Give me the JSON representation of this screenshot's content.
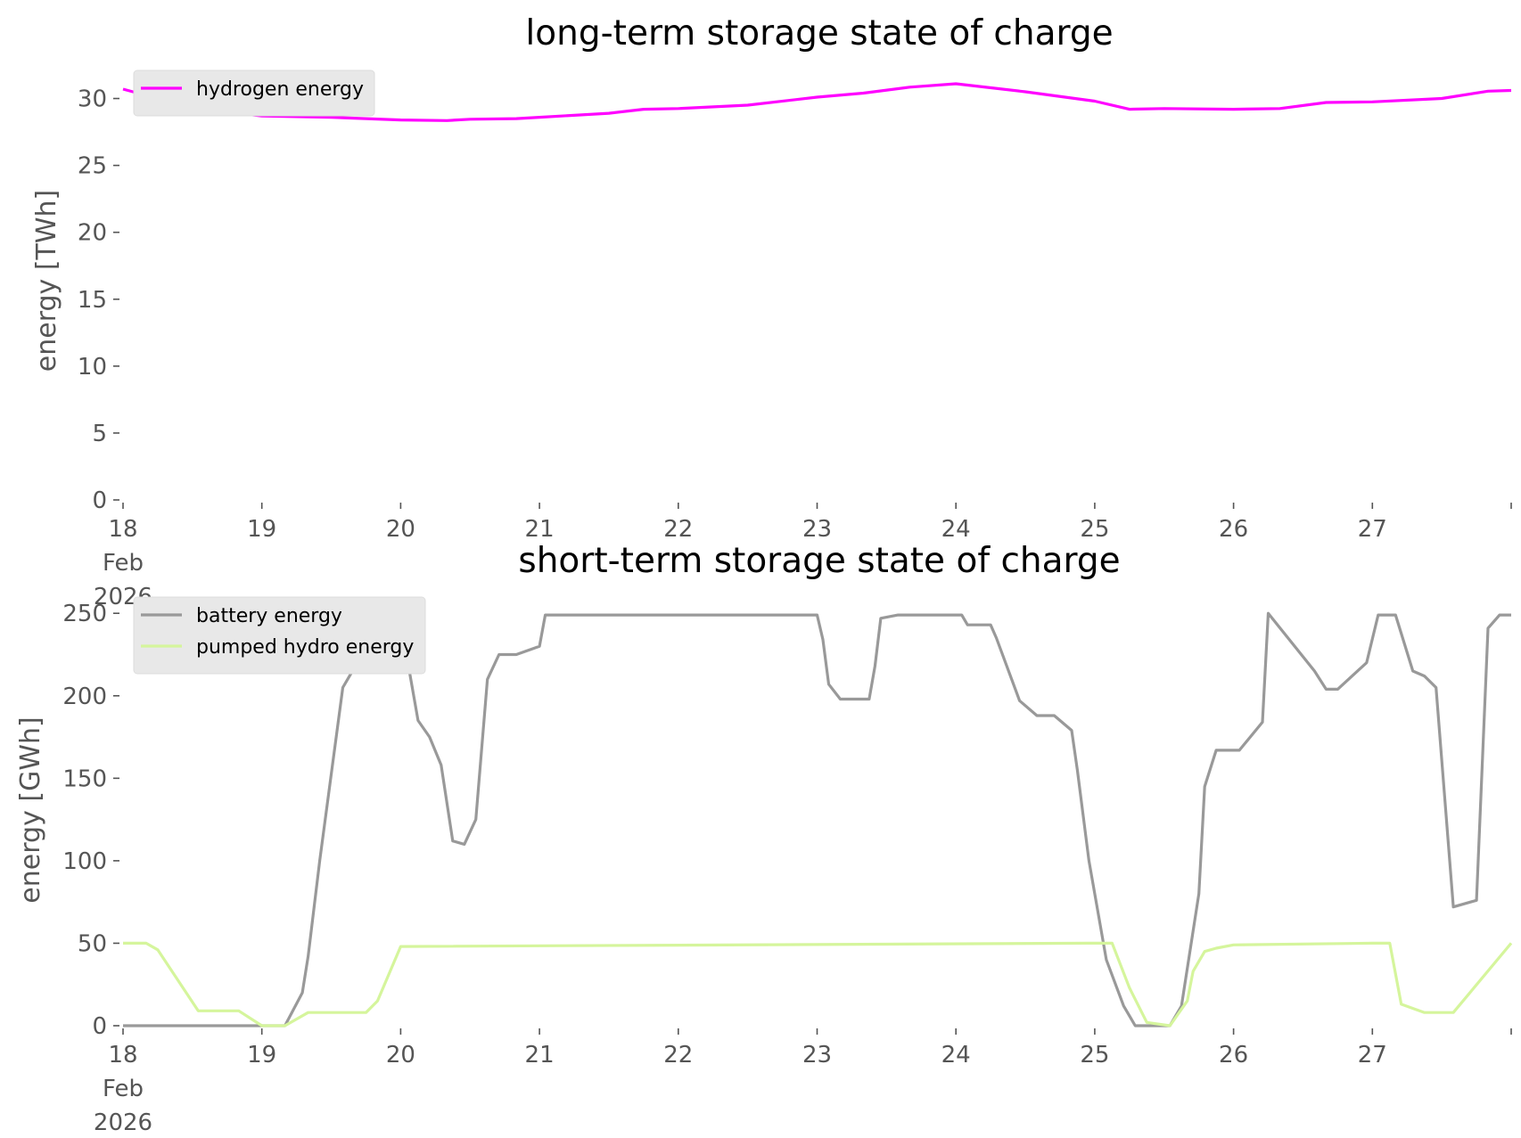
{
  "chart_data": [
    {
      "type": "line",
      "title": "long-term storage state of charge",
      "ylabel": "energy [TWh]",
      "xlabel": "",
      "x_range": [
        "2026-02-18",
        "2026-02-28"
      ],
      "ylim": [
        0,
        32.5
      ],
      "yticks": [
        0,
        5,
        10,
        15,
        20,
        25,
        30
      ],
      "xtick_labels": [
        "18\nFeb\n2026",
        "19",
        "20",
        "21",
        "22",
        "23",
        "24",
        "25",
        "26",
        "27"
      ],
      "grid": false,
      "legend_position": "top-left",
      "series": [
        {
          "name": "hydrogen energy",
          "color": "#ff00ff",
          "x": [
            "2026-02-18 00:00",
            "2026-02-18 06:00",
            "2026-02-18 12:00",
            "2026-02-18 18:00",
            "2026-02-19 00:00",
            "2026-02-19 12:00",
            "2026-02-20 00:00",
            "2026-02-20 08:00",
            "2026-02-20 12:00",
            "2026-02-20 20:00",
            "2026-02-21 00:00",
            "2026-02-21 12:00",
            "2026-02-21 18:00",
            "2026-02-22 00:00",
            "2026-02-22 12:00",
            "2026-02-23 00:00",
            "2026-02-23 08:00",
            "2026-02-23 16:00",
            "2026-02-24 00:00",
            "2026-02-24 12:00",
            "2026-02-25 00:00",
            "2026-02-25 06:00",
            "2026-02-25 12:00",
            "2026-02-26 00:00",
            "2026-02-26 08:00",
            "2026-02-26 16:00",
            "2026-02-27 00:00",
            "2026-02-27 12:00",
            "2026-02-27 20:00",
            "2026-02-28 00:00"
          ],
          "values": [
            30.7,
            30.0,
            29.5,
            29.0,
            28.7,
            28.6,
            28.4,
            28.35,
            28.45,
            28.5,
            28.6,
            28.9,
            29.2,
            29.25,
            29.5,
            30.1,
            30.4,
            30.85,
            31.1,
            30.5,
            29.8,
            29.2,
            29.25,
            29.2,
            29.25,
            29.7,
            29.75,
            30.0,
            30.55,
            30.6
          ]
        }
      ]
    },
    {
      "type": "line",
      "title": "short-term storage state of charge",
      "ylabel": "energy [GWh]",
      "xlabel": "",
      "x_range": [
        "2026-02-18",
        "2026-02-28"
      ],
      "ylim": [
        0,
        262
      ],
      "yticks": [
        0,
        50,
        100,
        150,
        200,
        250
      ],
      "xtick_labels": [
        "18\nFeb\n2026",
        "19",
        "20",
        "21",
        "22",
        "23",
        "24",
        "25",
        "26",
        "27"
      ],
      "grid": false,
      "legend_position": "top-left",
      "series": [
        {
          "name": "battery energy",
          "color": "#999999",
          "x": [
            "2026-02-18 00:00",
            "2026-02-19 04:00",
            "2026-02-19 07:00",
            "2026-02-19 08:00",
            "2026-02-19 10:00",
            "2026-02-19 14:00",
            "2026-02-19 16:00",
            "2026-02-19 18:00",
            "2026-02-19 20:00",
            "2026-02-19 23:00",
            "2026-02-20 01:00",
            "2026-02-20 03:00",
            "2026-02-20 05:00",
            "2026-02-20 07:00",
            "2026-02-20 09:00",
            "2026-02-20 11:00",
            "2026-02-20 13:00",
            "2026-02-20 15:00",
            "2026-02-20 17:00",
            "2026-02-20 20:00",
            "2026-02-21 00:00",
            "2026-02-21 01:00",
            "2026-02-21 07:00",
            "2026-02-21 08:00",
            "2026-02-21 11:00",
            "2026-02-22 11:00",
            "2026-02-22 19:00",
            "2026-02-22 23:00",
            "2026-02-23 00:00",
            "2026-02-23 01:00",
            "2026-02-23 02:00",
            "2026-02-23 04:00",
            "2026-02-23 09:00",
            "2026-02-23 10:00",
            "2026-02-23 11:00",
            "2026-02-23 14:00",
            "2026-02-23 16:00",
            "2026-02-23 19:00",
            "2026-02-24 01:00",
            "2026-02-24 02:00",
            "2026-02-24 06:00",
            "2026-02-24 07:00",
            "2026-02-24 11:00",
            "2026-02-24 14:00",
            "2026-02-24 15:00",
            "2026-02-24 17:00",
            "2026-02-24 20:00",
            "2026-02-24 21:00",
            "2026-02-24 23:00",
            "2026-02-25 02:00",
            "2026-02-25 05:00",
            "2026-02-25 07:00",
            "2026-02-25 09:00",
            "2026-02-25 13:00",
            "2026-02-25 15:00",
            "2026-02-25 18:00",
            "2026-02-25 19:00",
            "2026-02-25 21:00",
            "2026-02-26 00:00",
            "2026-02-26 01:00",
            "2026-02-26 05:00",
            "2026-02-26 06:00",
            "2026-02-26 14:00",
            "2026-02-26 16:00",
            "2026-02-26 18:00",
            "2026-02-26 23:00",
            "2026-02-27 01:00",
            "2026-02-27 02:00",
            "2026-02-27 03:00",
            "2026-02-27 04:00",
            "2026-02-27 07:00",
            "2026-02-27 09:00",
            "2026-02-27 11:00",
            "2026-02-27 14:00",
            "2026-02-27 18:00",
            "2026-02-27 20:00",
            "2026-02-27 22:00",
            "2026-02-28 00:00"
          ],
          "values": [
            0,
            0,
            20,
            42,
            100,
            205,
            217,
            217,
            225,
            250,
            225,
            185,
            175,
            158,
            112,
            110,
            125,
            210,
            225,
            225,
            230,
            249,
            249,
            249,
            249,
            249,
            249,
            249,
            249,
            234,
            207,
            198,
            198,
            218,
            247,
            249,
            249,
            249,
            249,
            243,
            243,
            235,
            197,
            188,
            188,
            188,
            179,
            155,
            100,
            40,
            12,
            0,
            0,
            0,
            12,
            80,
            145,
            167,
            167,
            167,
            184,
            250,
            215,
            204,
            204,
            220,
            249,
            249,
            249,
            249,
            215,
            212,
            205,
            72,
            76,
            241,
            249,
            249
          ]
        },
        {
          "name": "pumped hydro energy",
          "color": "#d5f59c",
          "x": [
            "2026-02-18 00:00",
            "2026-02-18 04:00",
            "2026-02-18 06:00",
            "2026-02-18 13:00",
            "2026-02-18 20:00",
            "2026-02-19 00:00",
            "2026-02-19 04:00",
            "2026-02-19 08:00",
            "2026-02-19 09:00",
            "2026-02-19 12:00",
            "2026-02-19 18:00",
            "2026-02-19 20:00",
            "2026-02-20 00:00",
            "2026-02-24 23:00",
            "2026-02-25 03:00",
            "2026-02-25 06:00",
            "2026-02-25 09:00",
            "2026-02-25 13:00",
            "2026-02-25 16:00",
            "2026-02-25 17:00",
            "2026-02-25 19:00",
            "2026-02-25 21:00",
            "2026-02-26 00:00",
            "2026-02-27 00:00",
            "2026-02-27 03:00",
            "2026-02-27 05:00",
            "2026-02-27 09:00",
            "2026-02-27 14:00",
            "2026-02-28 00:00"
          ],
          "values": [
            50,
            50,
            46,
            9,
            9,
            0,
            0,
            8,
            8,
            8,
            8,
            15,
            48,
            50,
            50,
            23,
            2,
            0,
            15,
            33,
            45,
            47,
            49,
            50,
            50,
            13,
            8,
            8,
            50
          ]
        }
      ]
    }
  ]
}
